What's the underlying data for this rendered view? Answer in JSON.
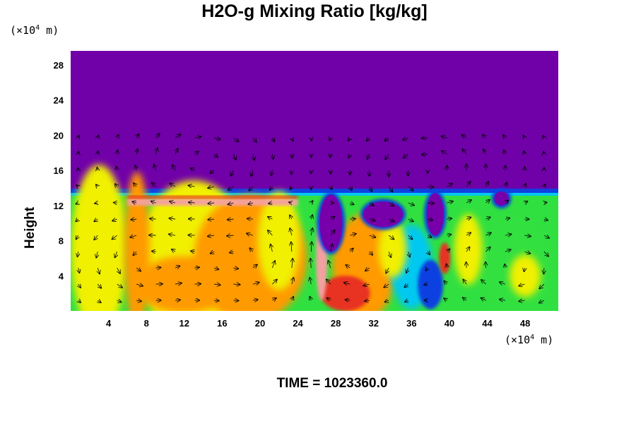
{
  "chart_data": {
    "type": "heatmap",
    "title": "H2O-g Mixing Ratio [kg/kg]",
    "ylabel": "Height",
    "xlabel": "",
    "x_unit_prefix": "(×10",
    "x_unit_exp": "4",
    "x_unit_suffix": " m)",
    "y_unit_prefix": "(×10",
    "y_unit_exp": "4",
    "y_unit_suffix": " m)",
    "xlim": [
      0,
      51.5
    ],
    "ylim": [
      0,
      29.6
    ],
    "x_ticks": [
      "4",
      "8",
      "12",
      "16",
      "20",
      "24",
      "28",
      "32",
      "36",
      "40",
      "44",
      "48"
    ],
    "y_ticks": [
      "4",
      "8",
      "12",
      "16",
      "20",
      "24",
      "28"
    ],
    "colors": {
      "background": "#7000a8",
      "dry": "#7700aa",
      "boundary_blue": "#1040e0",
      "cyan": "#00c8f0",
      "green": "#30e040",
      "yellow": "#f0f000",
      "orange": "#ff9a00",
      "red": "#e83020",
      "pink": "#f4a0a0",
      "vectors": "#000000"
    },
    "time_label": "TIME = 1023360.0"
  }
}
